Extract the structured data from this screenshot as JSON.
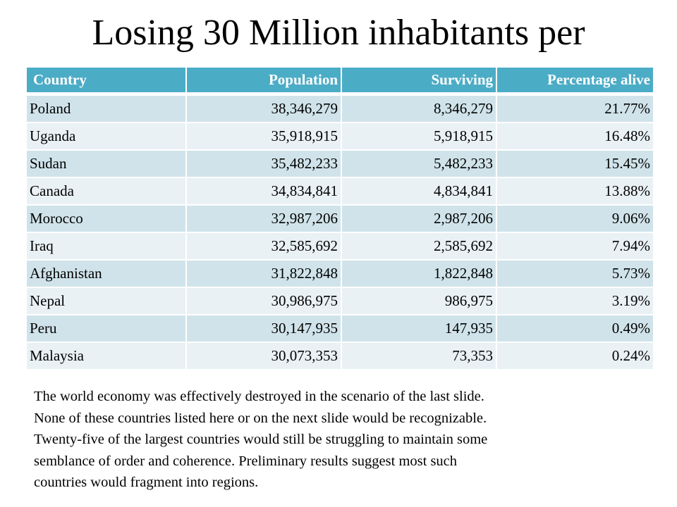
{
  "slide": {
    "title": "Losing 30 Million inhabitants per",
    "table": {
      "headers": [
        "Country",
        "Population",
        "Surviving",
        "Percentage alive"
      ],
      "rows": [
        [
          "Poland",
          "38,346,279",
          "8,346,279",
          "21.77%"
        ],
        [
          "Uganda",
          "35,918,915",
          "5,918,915",
          "16.48%"
        ],
        [
          "Sudan",
          "35,482,233",
          "5,482,233",
          "15.45%"
        ],
        [
          "Canada",
          "34,834,841",
          "4,834,841",
          "13.88%"
        ],
        [
          "Morocco",
          "32,987,206",
          "2,987,206",
          "9.06%"
        ],
        [
          "Iraq",
          "32,585,692",
          "2,585,692",
          "7.94%"
        ],
        [
          "Afghanistan",
          "31,822,848",
          "1,822,848",
          "5.73%"
        ],
        [
          "Nepal",
          "30,986,975",
          "986,975",
          "3.19%"
        ],
        [
          "Peru",
          "30,147,935",
          "147,935",
          "0.49%"
        ],
        [
          "Malaysia",
          "30,073,353",
          "73,353",
          "0.24%"
        ]
      ]
    },
    "notes_lines": [
      "The world economy was effectively destroyed in the scenario of the last slide.",
      "None of these countries listed here or on the next slide would be recognizable.",
      "Twenty-five of the largest countries would still be struggling to maintain some",
      "semblance of order and coherence. Preliminary results suggest most such",
      "countries would fragment into regions."
    ]
  },
  "colors": {
    "header_bg": "#4bacc6",
    "row_odd_bg": "#d0e3ea",
    "row_even_bg": "#e9f1f5"
  }
}
